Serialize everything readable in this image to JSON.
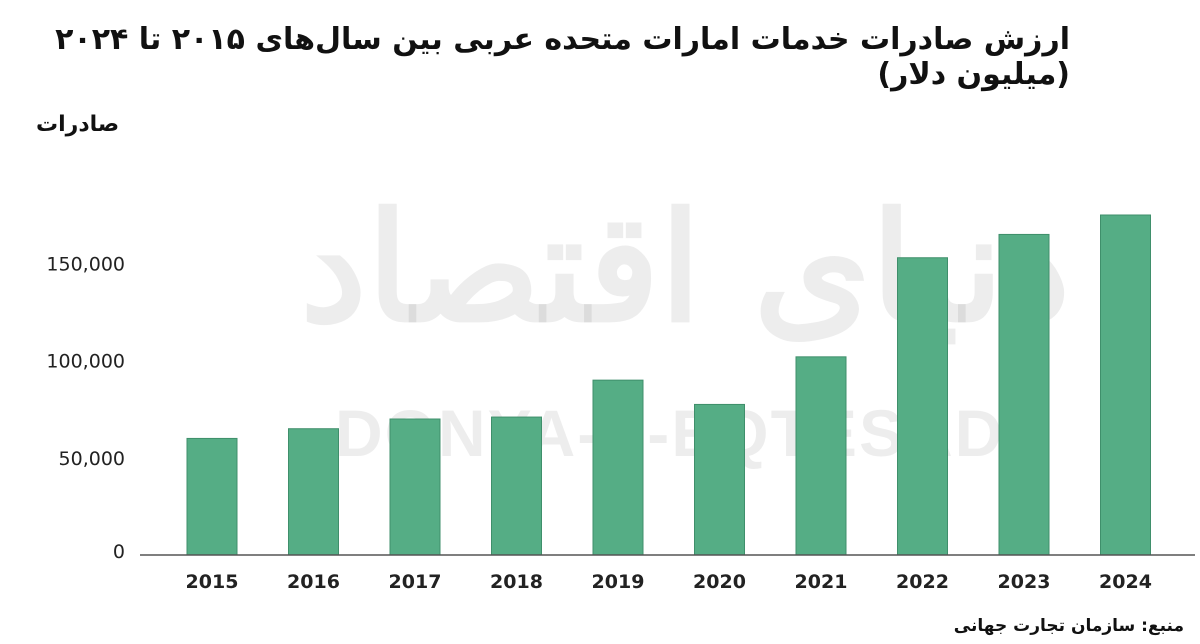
{
  "title": "ارزش صادرات خدمات امارات متحده عربی بین سال‌های ۲۰۱۵ تا ۲۰۲۴ (میلیون دلار)",
  "source": "منبع: سازمان تجارت جهانی",
  "watermark": {
    "fa": "دنیای اقتصاد",
    "en": "DONYA-E-EQTESAD"
  },
  "colors": {
    "bar": "#55ad85",
    "bar_stroke": "#3f8f6b",
    "axis": "#555555"
  },
  "chart_data": {
    "type": "bar",
    "title": "ارزش صادرات خدمات امارات متحده عربی بین سال‌های ۲۰۱۵ تا ۲۰۲۴ (میلیون دلار)",
    "xlabel": "",
    "ylabel": "صادرات",
    "categories": [
      "2015",
      "2016",
      "2017",
      "2018",
      "2019",
      "2020",
      "2021",
      "2022",
      "2023",
      "2024"
    ],
    "values": [
      60000,
      65000,
      70000,
      71000,
      90000,
      77500,
      102000,
      153000,
      165000,
      175000
    ],
    "ylim": [
      0,
      175000
    ],
    "yticks": [
      0,
      50000,
      100000,
      150000
    ],
    "ytick_labels": [
      "0",
      "50,000",
      "100,000",
      "150,000"
    ],
    "grid": false,
    "legend": "none"
  }
}
